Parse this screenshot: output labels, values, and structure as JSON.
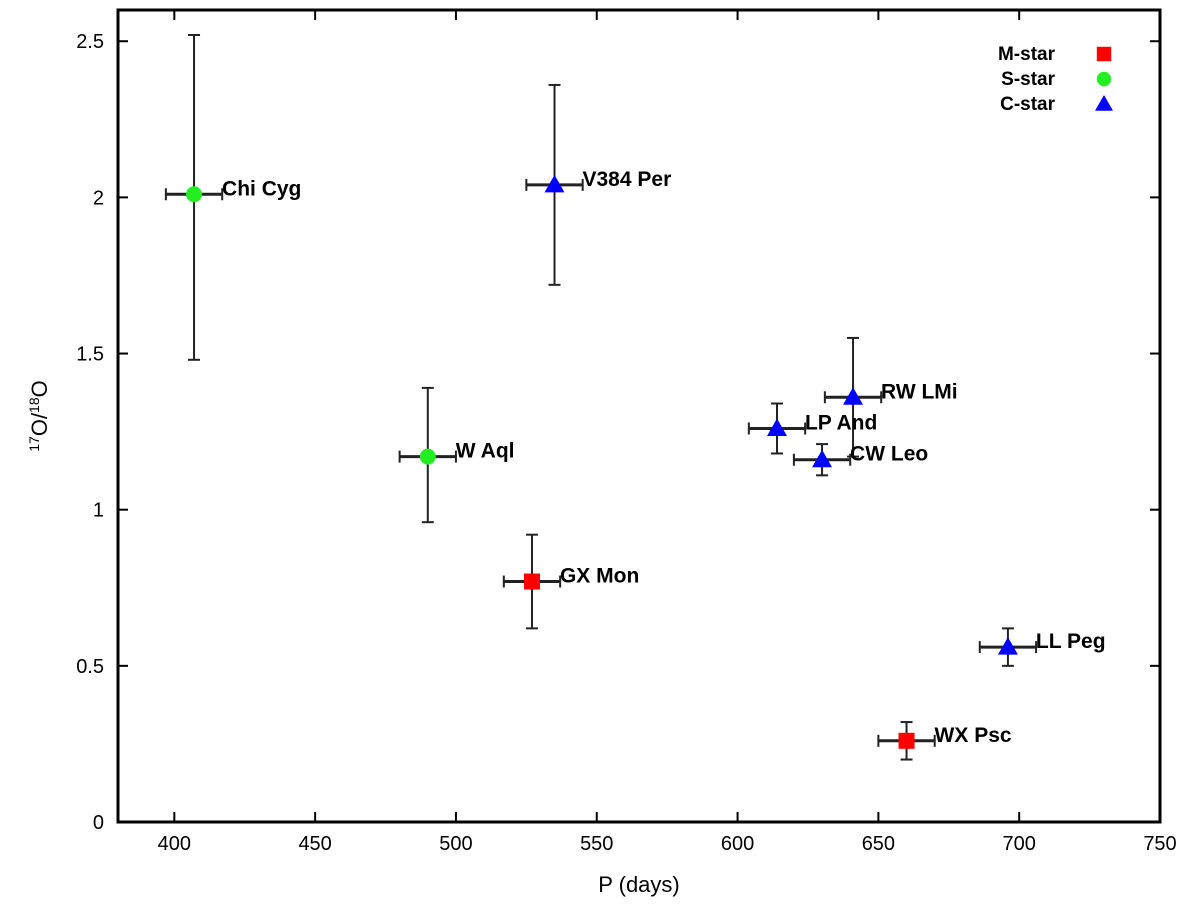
{
  "chart_data": {
    "type": "scatter",
    "title": "",
    "xlabel": "P (days)",
    "ylabel": {
      "iso1": "17",
      "el1": "O/",
      "iso2": "18",
      "el2": "O"
    },
    "xlim": [
      380,
      750
    ],
    "ylim": [
      0,
      2.6
    ],
    "xticks": [
      400,
      450,
      500,
      550,
      600,
      650,
      700,
      750
    ],
    "yticks": [
      0,
      0.5,
      1,
      1.5,
      2,
      2.5
    ],
    "ytick_labels": [
      "0",
      "0.5",
      "1",
      "1.5",
      "2",
      "2.5"
    ],
    "grid": false,
    "legend_position": "top-right",
    "series": [
      {
        "name": "M-star",
        "marker": "square",
        "color": "#ff0000",
        "points": [
          {
            "label": "GX Mon",
            "x": 527,
            "y": 0.77,
            "xerr": 10,
            "yerr_low": 0.15,
            "yerr_high": 0.15
          },
          {
            "label": "WX Psc",
            "x": 660,
            "y": 0.26,
            "xerr": 10,
            "yerr_low": 0.06,
            "yerr_high": 0.06
          }
        ]
      },
      {
        "name": "S-star",
        "marker": "circle",
        "color": "#22ee22",
        "points": [
          {
            "label": "Chi Cyg",
            "x": 407,
            "y": 2.01,
            "xerr": 10,
            "yerr_low": 0.53,
            "yerr_high": 0.51
          },
          {
            "label": "W Aql",
            "x": 490,
            "y": 1.17,
            "xerr": 10,
            "yerr_low": 0.21,
            "yerr_high": 0.22
          }
        ]
      },
      {
        "name": "C-star",
        "marker": "triangle",
        "color": "#0000ff",
        "points": [
          {
            "label": "V384 Per",
            "x": 535,
            "y": 2.04,
            "xerr": 10,
            "yerr_low": 0.32,
            "yerr_high": 0.32
          },
          {
            "label": "RW LMi",
            "x": 641,
            "y": 1.36,
            "xerr": 10,
            "yerr_low": 0.19,
            "yerr_high": 0.19
          },
          {
            "label": "LP And",
            "x": 614,
            "y": 1.26,
            "xerr": 10,
            "yerr_low": 0.08,
            "yerr_high": 0.08
          },
          {
            "label": "CW Leo",
            "x": 630,
            "y": 1.16,
            "xerr": 10,
            "yerr_low": 0.05,
            "yerr_high": 0.05
          },
          {
            "label": "LL Peg",
            "x": 696,
            "y": 0.56,
            "xerr": 10,
            "yerr_low": 0.06,
            "yerr_high": 0.06
          }
        ]
      }
    ]
  }
}
